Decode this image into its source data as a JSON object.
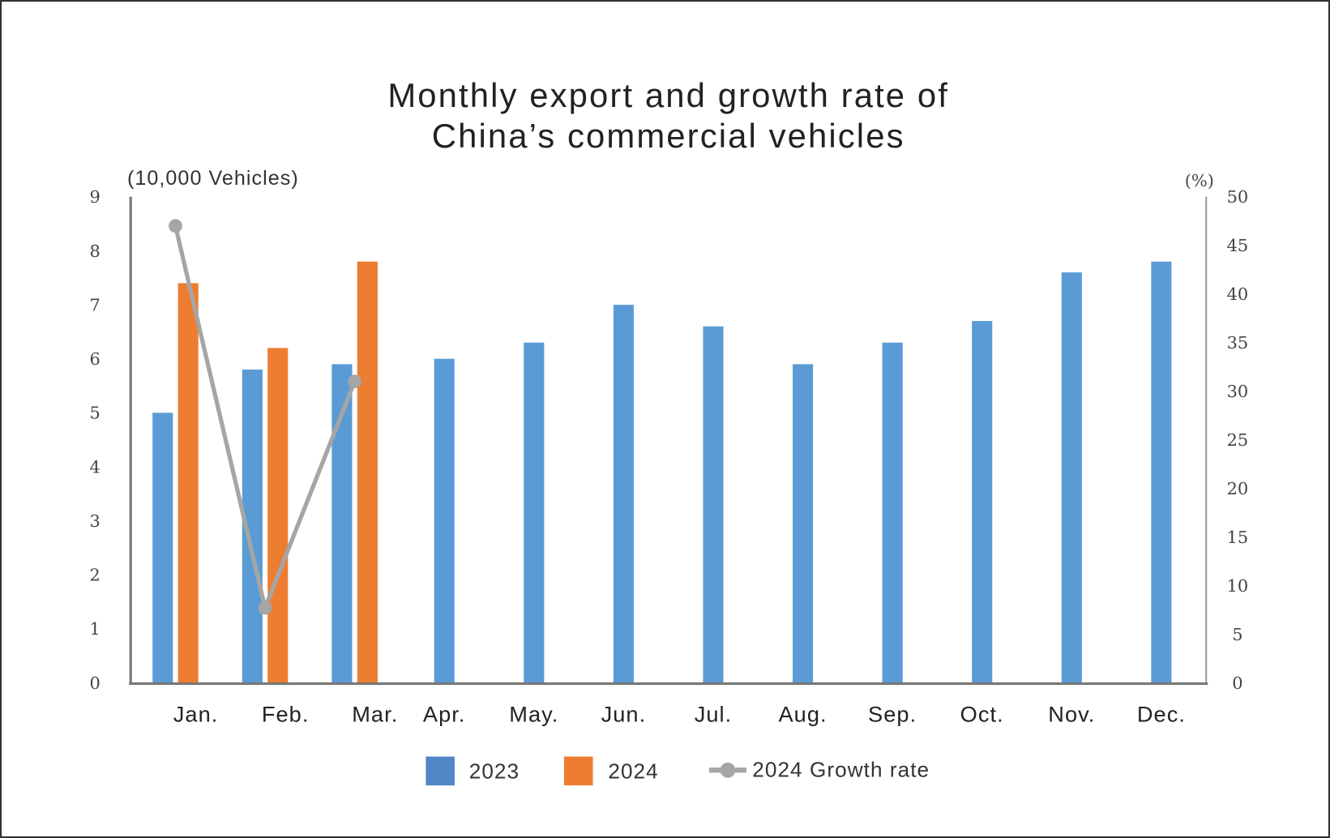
{
  "chart_data": {
    "type": "bar",
    "title": "Monthly export and growth rate of China’s commercial vehicles",
    "title_lines": [
      "Monthly export and growth rate of",
      "China’s commercial vehicles"
    ],
    "ylabel_left": "(10,000 Vehicles)",
    "ylabel_right": "(%)",
    "categories": [
      "Jan.",
      "Feb.",
      "Mar.",
      "Apr.",
      "May.",
      "Jun.",
      "Jul.",
      "Aug.",
      "Sep.",
      "Oct.",
      "Nov.",
      "Dec."
    ],
    "ylim_left": [
      0,
      9
    ],
    "yticks_left": [
      "0",
      "1",
      "2",
      "3",
      "4",
      "5",
      "6",
      "7",
      "8",
      "9"
    ],
    "ylim_right": [
      0,
      50
    ],
    "yticks_right": [
      "0",
      "5",
      "10",
      "15",
      "20",
      "25",
      "30",
      "35",
      "40",
      "45",
      "50"
    ],
    "grid": false,
    "legend_position": "bottom",
    "series": [
      {
        "name": "2023",
        "type": "bar",
        "axis": "left",
        "color": "#5b9bd5",
        "values": [
          5.0,
          5.8,
          5.9,
          6.0,
          6.3,
          7.0,
          6.6,
          5.9,
          6.3,
          6.7,
          7.6,
          7.8
        ]
      },
      {
        "name": "2024",
        "type": "bar",
        "axis": "left",
        "color": "#ed7d31",
        "values": [
          7.4,
          6.2,
          7.8,
          null,
          null,
          null,
          null,
          null,
          null,
          null,
          null,
          null
        ]
      },
      {
        "name": "2024 Growth rate",
        "type": "line",
        "axis": "right",
        "color": "#a5a5a5",
        "values": [
          47.0,
          7.7,
          31.0,
          null,
          null,
          null,
          null,
          null,
          null,
          null,
          null,
          null
        ]
      }
    ]
  }
}
